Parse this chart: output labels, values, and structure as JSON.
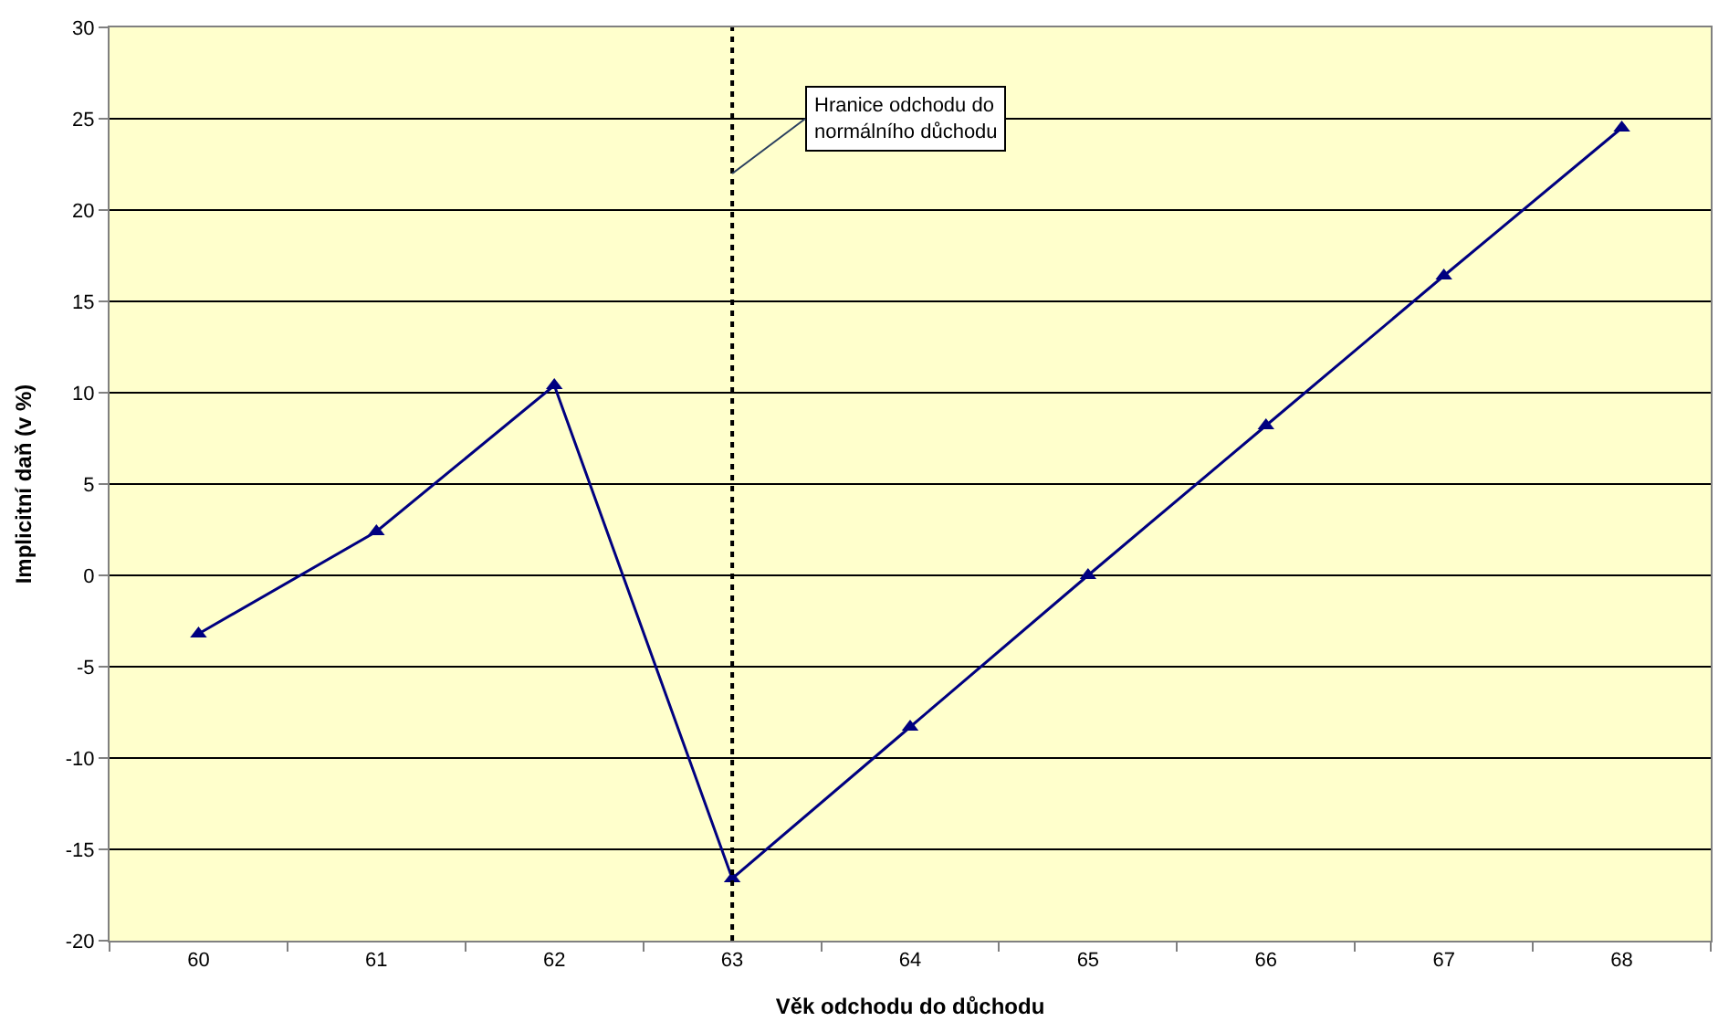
{
  "chart_data": {
    "type": "line",
    "xlabel": "Věk odchodu do důchodu",
    "ylabel": "Implicitní daň (v %)",
    "x": [
      60,
      61,
      62,
      63,
      64,
      65,
      66,
      67,
      68
    ],
    "series": [
      {
        "color": "#000080",
        "values": [
          -3.2,
          2.4,
          10.4,
          -16.6,
          -8.3,
          0,
          8.2,
          16.4,
          24.5
        ]
      }
    ],
    "xlim": [
      59.5,
      68.5
    ],
    "xticks": [
      60,
      61,
      62,
      63,
      64,
      65,
      66,
      67,
      68
    ],
    "ylim": [
      -20,
      30
    ],
    "yticks": [
      -20,
      -15,
      -10,
      -5,
      0,
      5,
      10,
      15,
      20,
      25,
      30
    ],
    "ref_lines": [
      {
        "axis": "x",
        "value": 63,
        "label": "Hranice odchodu do normálního důchodu",
        "line_style": "dotted",
        "color": "#000000"
      }
    ],
    "grid": "y",
    "marker": "triangle",
    "line_style": "solid"
  }
}
